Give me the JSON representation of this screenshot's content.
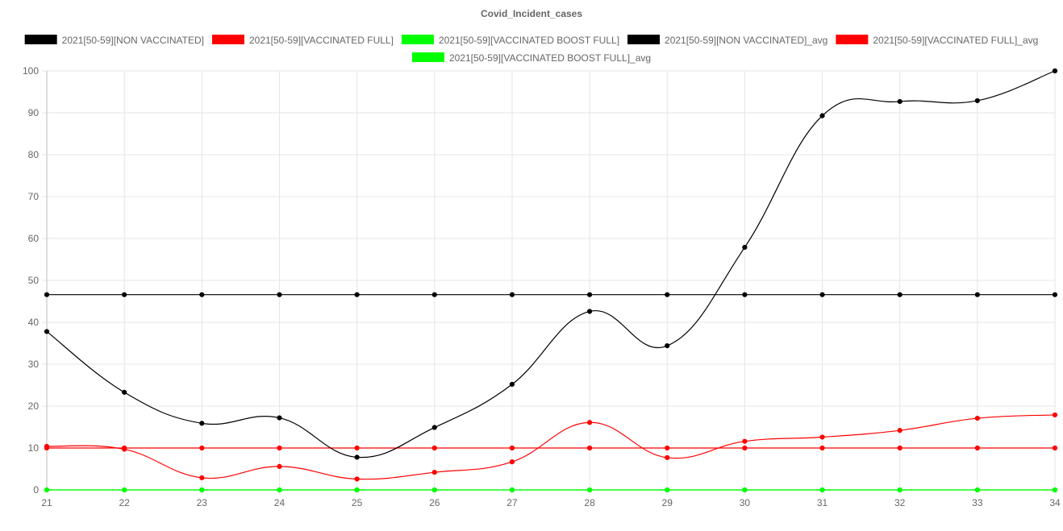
{
  "chart_data": {
    "type": "line",
    "title": "Covid_Incident_cases",
    "xlabel": "",
    "ylabel": "",
    "x": [
      21,
      22,
      23,
      24,
      25,
      26,
      27,
      28,
      29,
      30,
      31,
      32,
      33,
      34
    ],
    "ylim": [
      0,
      100
    ],
    "yticks": [
      0,
      10,
      20,
      30,
      40,
      50,
      60,
      70,
      80,
      90,
      100
    ],
    "grid": true,
    "legend_position": "top",
    "series": [
      {
        "name": "2021[50-59][NON VACCINATED]",
        "color": "#000000",
        "smooth": true,
        "values": [
          37.8,
          23.3,
          15.9,
          17.2,
          7.8,
          14.9,
          25.2,
          42.6,
          34.4,
          57.9,
          89.3,
          92.7,
          92.9,
          100
        ]
      },
      {
        "name": "2021[50-59][VACCINATED FULL]",
        "color": "#ff0000",
        "smooth": true,
        "values": [
          10.4,
          9.7,
          2.9,
          5.6,
          2.6,
          4.2,
          6.7,
          16.1,
          7.7,
          11.6,
          12.6,
          14.2,
          17.1,
          17.9
        ]
      },
      {
        "name": "2021[50-59][VACCINATED BOOST FULL]",
        "color": "#00ff00",
        "smooth": true,
        "values": [
          0,
          0,
          0,
          0,
          0,
          0,
          0,
          0,
          0,
          0,
          0,
          0,
          0,
          0
        ]
      },
      {
        "name": "2021[50-59][NON VACCINATED]_avg",
        "color": "#000000",
        "smooth": false,
        "values": [
          46.6,
          46.6,
          46.6,
          46.6,
          46.6,
          46.6,
          46.6,
          46.6,
          46.6,
          46.6,
          46.6,
          46.6,
          46.6,
          46.6
        ]
      },
      {
        "name": "2021[50-59][VACCINATED FULL]_avg",
        "color": "#ff0000",
        "smooth": false,
        "values": [
          10,
          10,
          10,
          10,
          10,
          10,
          10,
          10,
          10,
          10,
          10,
          10,
          10,
          10
        ]
      },
      {
        "name": "2021[50-59][VACCINATED BOOST FULL]_avg",
        "color": "#00ff00",
        "smooth": false,
        "values": [
          0,
          0,
          0,
          0,
          0,
          0,
          0,
          0,
          0,
          0,
          0,
          0,
          0,
          0
        ]
      }
    ]
  }
}
